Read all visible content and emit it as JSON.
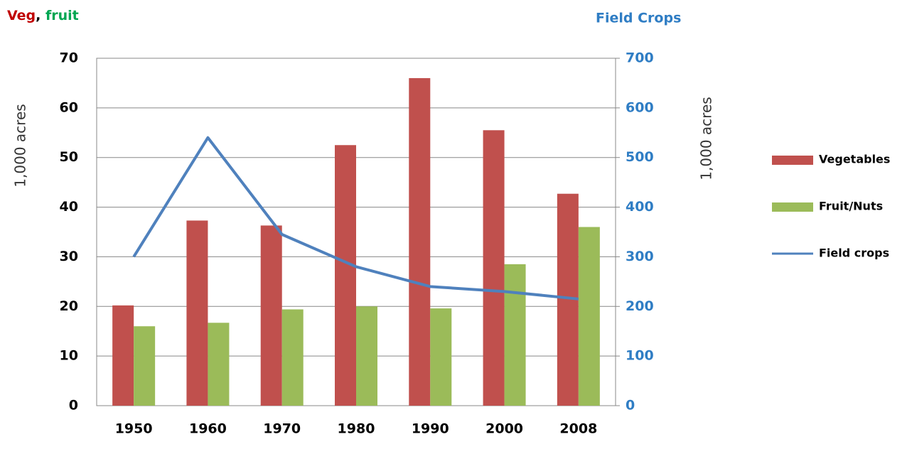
{
  "chart_data": {
    "type": "bar_line",
    "title_parts": [
      "Veg",
      ", ",
      "fruit"
    ],
    "y2_title": "Field Crops",
    "ylabel": "1,000 acres",
    "y2label": "1,000 acres",
    "categories": [
      "1950",
      "1960",
      "1970",
      "1980",
      "1990",
      "2000",
      "2008"
    ],
    "series": [
      {
        "name": "Vegetables",
        "type": "bar",
        "color": "#c0504d",
        "values": [
          20.2,
          37.3,
          36.3,
          52.5,
          66,
          55.5,
          42.7
        ]
      },
      {
        "name": "Fruit/Nuts",
        "type": "bar",
        "color": "#9bbb59",
        "values": [
          16,
          16.7,
          19.4,
          20,
          19.6,
          28.5,
          36
        ]
      },
      {
        "name": "Field crops",
        "type": "line",
        "axis": "y2",
        "color": "#4f81bd",
        "values": [
          300,
          540,
          345,
          280,
          240,
          230,
          215
        ]
      }
    ],
    "ylim": [
      0,
      70
    ],
    "yticks": [
      0,
      10,
      20,
      30,
      40,
      50,
      60,
      70
    ],
    "y2lim": [
      0,
      700
    ],
    "y2ticks": [
      0,
      100,
      200,
      300,
      400,
      500,
      600,
      700
    ],
    "grid": true,
    "legend": "right"
  }
}
